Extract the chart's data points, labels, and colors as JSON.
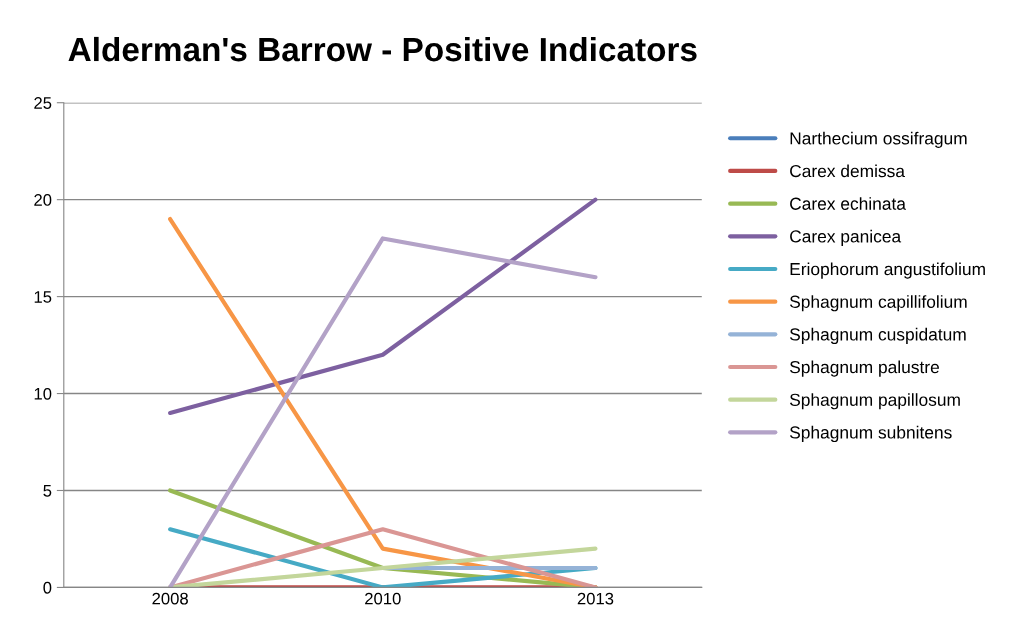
{
  "chart_data": {
    "type": "line",
    "title": "Alderman's Barrow - Positive Indicators",
    "categories": [
      "2008",
      "2010",
      "2013"
    ],
    "series": [
      {
        "name": "Narthecium ossifragum",
        "color": "#4a7ebb",
        "values": [
          null,
          null,
          null
        ]
      },
      {
        "name": "Carex demissa",
        "color": "#be4b48",
        "values": [
          0,
          0,
          0
        ]
      },
      {
        "name": "Carex echinata",
        "color": "#98b954",
        "values": [
          5,
          1,
          0
        ]
      },
      {
        "name": "Carex panicea",
        "color": "#7d60a0",
        "values": [
          9,
          12,
          20
        ]
      },
      {
        "name": "Eriophorum angustifolium",
        "color": "#46aac5",
        "values": [
          3,
          0,
          1
        ]
      },
      {
        "name": "Sphagnum capillifolium",
        "color": "#f79646",
        "values": [
          19,
          2,
          0
        ]
      },
      {
        "name": "Sphagnum cuspidatum",
        "color": "#95b3d7",
        "values": [
          null,
          1,
          1
        ]
      },
      {
        "name": "Sphagnum palustre",
        "color": "#da9694",
        "values": [
          0,
          3,
          0
        ]
      },
      {
        "name": "Sphagnum papillosum",
        "color": "#c3d69b",
        "values": [
          0,
          1,
          2
        ]
      },
      {
        "name": "Sphagnum subnitens",
        "color": "#b3a2c7",
        "values": [
          0,
          18,
          16
        ]
      }
    ],
    "ylim": [
      0,
      25
    ],
    "yticks": [
      0,
      5,
      10,
      15,
      20,
      25
    ],
    "grid": "y",
    "legend": "right",
    "marker": "none"
  }
}
